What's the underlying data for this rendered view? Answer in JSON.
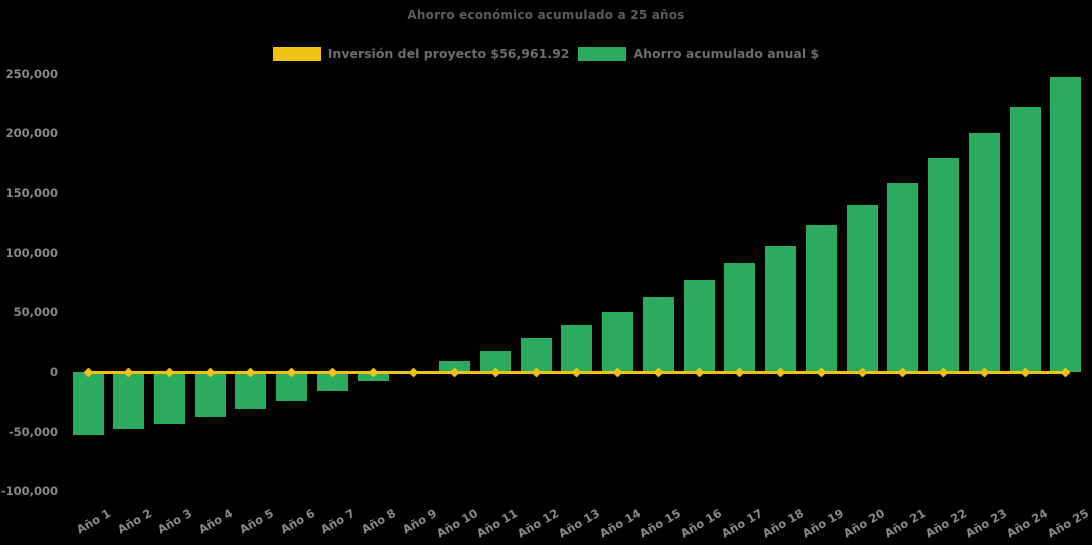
{
  "window": {
    "background": "#000000"
  },
  "chart": {
    "title": "Ahorro económico acumulado a 25 años",
    "legend": [
      {
        "label": "Inversión del proyecto $56,961.92",
        "color": "#eec315"
      },
      {
        "label": "Ahorro acumulado anual $",
        "color": "#2aab60"
      }
    ]
  },
  "chart_data": {
    "type": "bar",
    "title": "Ahorro económico acumulado a 25 años",
    "xlabel": "",
    "ylabel": "",
    "categories": [
      "Año 1",
      "Año 2",
      "Año 3",
      "Año 4",
      "Año 5",
      "Año 6",
      "Año 7",
      "Año 8",
      "Año 9",
      "Año 10",
      "Año 11",
      "Año 12",
      "Año 13",
      "Año 14",
      "Año 15",
      "Año 16",
      "Año 17",
      "Año 18",
      "Año 19",
      "Año 20",
      "Año 21",
      "Año 22",
      "Año 23",
      "Año 24",
      "Año 25"
    ],
    "series": [
      {
        "name": "Inversión del proyecto $56,961.92",
        "type": "line",
        "color": "#eec315",
        "marker": "diamond",
        "values": [
          0,
          0,
          0,
          0,
          0,
          0,
          0,
          0,
          0,
          0,
          0,
          0,
          0,
          0,
          0,
          0,
          0,
          0,
          0,
          0,
          0,
          0,
          0,
          0,
          0
        ]
      },
      {
        "name": "Ahorro acumulado anual $",
        "type": "bar",
        "color": "#2aab60",
        "values": [
          -52500,
          -48000,
          -43500,
          -38000,
          -31000,
          -24000,
          -16000,
          -7500,
          500,
          9500,
          18000,
          28500,
          39500,
          50500,
          63000,
          77000,
          91500,
          106000,
          123000,
          140000,
          158500,
          179000,
          200500,
          222500,
          247000
        ]
      }
    ],
    "investment_amount_label": "$56,961.92",
    "ylim": [
      -100000,
      250000
    ],
    "y_ticks": [
      250000,
      200000,
      150000,
      100000,
      50000,
      0,
      -50000,
      -100000
    ],
    "y_tick_labels": [
      "250,000",
      "200,000",
      "150,000",
      "100,000",
      "50,000",
      "0",
      "-50,000",
      "-100,000"
    ],
    "grid": false,
    "legend_position": "top",
    "background": "#000000",
    "text_color": "#8a8a8a"
  }
}
